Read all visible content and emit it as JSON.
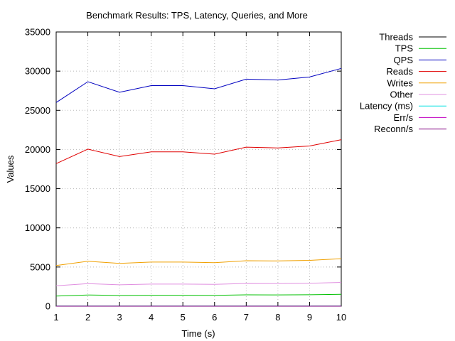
{
  "chart_data": {
    "type": "line",
    "title": "Benchmark Results: TPS, Latency, Queries, and More",
    "xlabel": "Time (s)",
    "ylabel": "Values",
    "xlim": [
      1,
      10
    ],
    "ylim": [
      0,
      35000
    ],
    "x": [
      1,
      2,
      3,
      4,
      5,
      6,
      7,
      8,
      9,
      10
    ],
    "x_ticks": [
      "1",
      "2",
      "3",
      "4",
      "5",
      "6",
      "7",
      "8",
      "9",
      "10"
    ],
    "y_ticks": [
      0,
      5000,
      10000,
      15000,
      20000,
      25000,
      30000,
      35000
    ],
    "y_tick_labels": [
      "0",
      "5000",
      "10000",
      "15000",
      "20000",
      "25000",
      "30000",
      "35000"
    ],
    "grid": true,
    "legend_position": "outside-right",
    "series": [
      {
        "name": "Threads",
        "color": "#000000",
        "values": [
          8,
          8,
          8,
          8,
          8,
          8,
          8,
          8,
          8,
          8
        ]
      },
      {
        "name": "TPS",
        "color": "#00c000",
        "values": [
          1300,
          1430,
          1370,
          1400,
          1400,
          1380,
          1450,
          1440,
          1460,
          1510
        ]
      },
      {
        "name": "QPS",
        "color": "#0000c0",
        "values": [
          26000,
          28650,
          27300,
          28150,
          28150,
          27750,
          28980,
          28870,
          29250,
          30350
        ]
      },
      {
        "name": "Reads",
        "color": "#e00000",
        "values": [
          18200,
          20050,
          19100,
          19700,
          19700,
          19400,
          20300,
          20200,
          20450,
          21250
        ]
      },
      {
        "name": "Writes",
        "color": "#f0a000",
        "values": [
          5200,
          5730,
          5460,
          5630,
          5630,
          5550,
          5800,
          5780,
          5850,
          6070
        ]
      },
      {
        "name": "Other",
        "color": "#e090e0",
        "values": [
          2600,
          2870,
          2730,
          2820,
          2820,
          2780,
          2900,
          2890,
          2930,
          3040
        ]
      },
      {
        "name": "Latency (ms)",
        "color": "#00e0e0",
        "values": [
          6,
          6,
          6,
          6,
          6,
          6,
          6,
          6,
          6,
          6
        ]
      },
      {
        "name": "Err/s",
        "color": "#c000c0",
        "values": [
          0,
          0,
          0,
          0,
          0,
          0,
          0,
          0,
          0,
          0
        ]
      },
      {
        "name": "Reconn/s",
        "color": "#800080",
        "values": [
          0,
          0,
          0,
          0,
          0,
          0,
          0,
          0,
          0,
          0
        ]
      }
    ]
  }
}
